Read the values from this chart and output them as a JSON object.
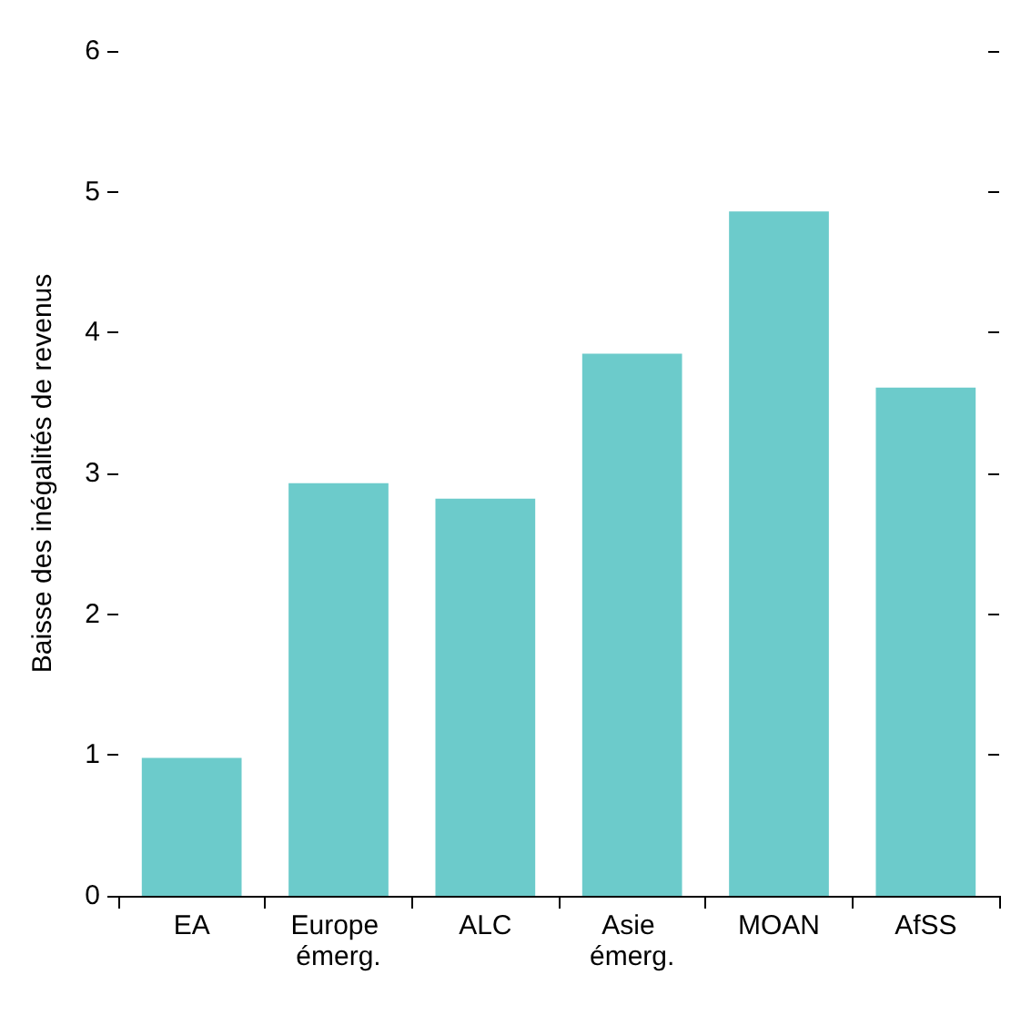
{
  "chart_data": {
    "type": "bar",
    "ylabel": "Baisse des inégalités de revenus",
    "categories": [
      "EA",
      "Europe émerg.",
      "ALC",
      "Asie émerg.",
      "MOAN",
      "AfSS"
    ],
    "values": [
      0.98,
      2.93,
      2.82,
      3.85,
      4.86,
      3.61
    ],
    "color": "#6ccbcb",
    "ylim": [
      0,
      6
    ],
    "yticks": [
      0,
      1,
      2,
      3,
      4,
      5,
      6
    ],
    "grid": false
  }
}
